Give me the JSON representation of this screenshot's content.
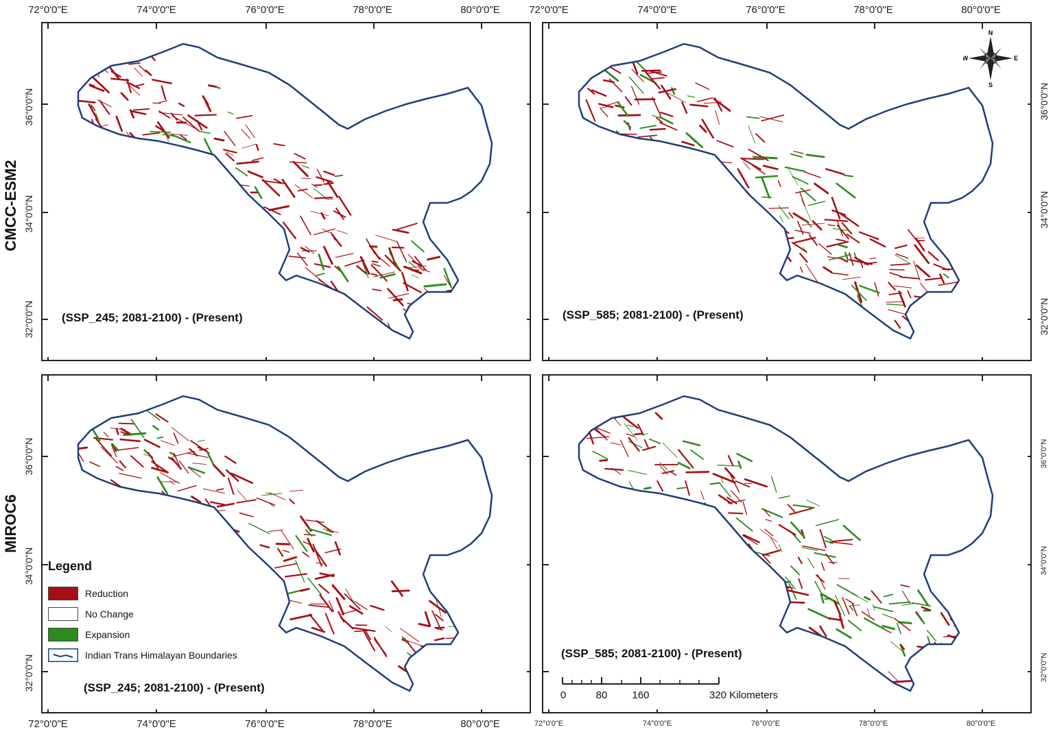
{
  "row_labels": [
    "CMCC-ESM2",
    "MIROC6"
  ],
  "lon_labels": [
    "72°0'0\"E",
    "74°0'0\"E",
    "76°0'0\"E",
    "78°0'0\"E",
    "80°0'0\"E"
  ],
  "lat_labels": [
    "36°0'0\"N",
    "34°0'0\"N",
    "32°0'0\"N"
  ],
  "panels": [
    {
      "model": "CMCC-ESM2",
      "scenario": "(SSP_245; 2081-2100) - (Present)"
    },
    {
      "model": "CMCC-ESM2",
      "scenario": "(SSP_585; 2081-2100) - (Present)"
    },
    {
      "model": "MIROC6",
      "scenario": "(SSP_245; 2081-2100) - (Present)"
    },
    {
      "model": "MIROC6",
      "scenario": "(SSP_585; 2081-2100) - (Present)"
    }
  ],
  "legend": {
    "title": "Legend",
    "items": [
      {
        "label": "Reduction",
        "color": "#a50f15"
      },
      {
        "label": "No Change",
        "color": "#ffffff"
      },
      {
        "label": "Expansion",
        "color": "#2e8b20"
      },
      {
        "label": "Indian Trans Himalayan Boundaries",
        "color": "#1f3d7a"
      }
    ]
  },
  "scale_bar": {
    "labels": [
      "0",
      "80",
      "160",
      "320 Kilometers"
    ]
  },
  "compass": {
    "n": "N",
    "s": "S",
    "e": "E",
    "w": "W"
  },
  "colors": {
    "boundary": "#1f3d7a",
    "reduction": "#a50f15",
    "expansion": "#2e8b20",
    "frame": "#222222"
  }
}
